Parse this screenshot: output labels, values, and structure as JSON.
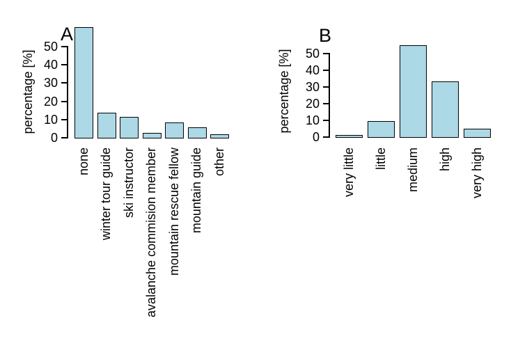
{
  "colors": {
    "background": "#ffffff",
    "bar_fill": "#add8e6",
    "bar_border": "#000000",
    "text": "#000000"
  },
  "chart_data": [
    {
      "type": "bar",
      "panel_label": "A",
      "title": "",
      "xlabel": "",
      "ylabel": "percentage [%]",
      "categories": [
        "none",
        "winter tour guide",
        "ski instructor",
        "avalanche commision member",
        "mountain rescue fellow",
        "mountain guide",
        "other"
      ],
      "values": [
        60,
        13,
        11,
        2,
        8,
        5,
        1.5
      ],
      "yticks": [
        0,
        10,
        20,
        30,
        40,
        50
      ],
      "ylim": [
        0,
        62
      ],
      "grid": false,
      "legend_position": "none",
      "bar_color": "#add8e6",
      "x_tick_rotation": 90
    },
    {
      "type": "bar",
      "panel_label": "B",
      "title": "",
      "xlabel": "",
      "ylabel": "percentage [%]",
      "categories": [
        "very little",
        "little",
        "medium",
        "high",
        "very high"
      ],
      "values": [
        0.5,
        9,
        54,
        32.5,
        4.5
      ],
      "yticks": [
        0,
        10,
        20,
        30,
        40,
        50
      ],
      "ylim": [
        0,
        62
      ],
      "grid": false,
      "legend_position": "none",
      "bar_color": "#add8e6",
      "x_tick_rotation": 90
    }
  ]
}
